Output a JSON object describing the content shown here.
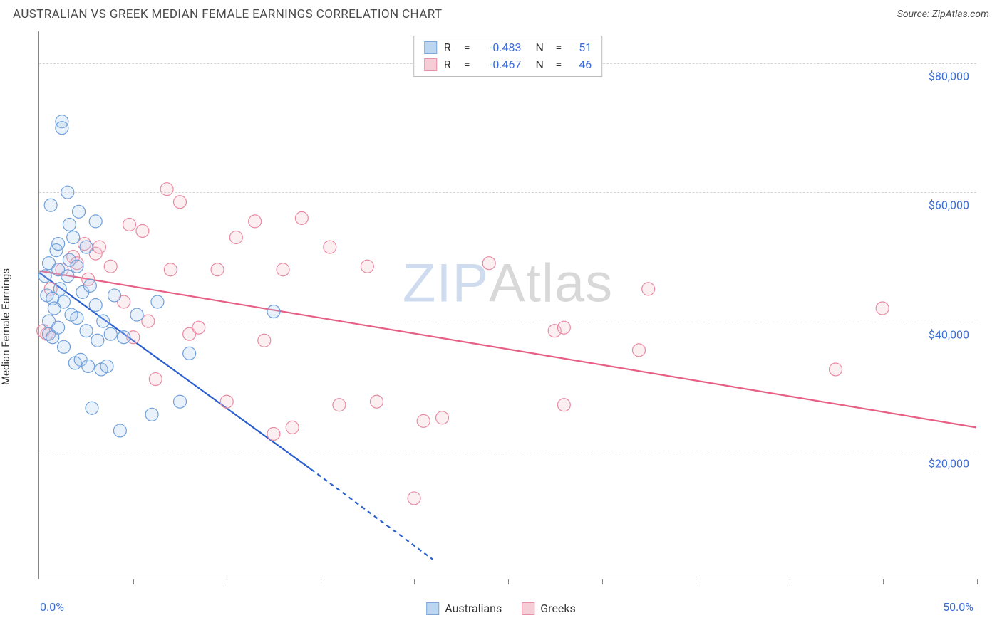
{
  "header": {
    "title": "AUSTRALIAN VS GREEK MEDIAN FEMALE EARNINGS CORRELATION CHART",
    "source_prefix": "Source: ",
    "source_name": "ZipAtlas.com"
  },
  "watermark": {
    "part1": "ZIP",
    "part2": "Atlas"
  },
  "chart": {
    "type": "scatter",
    "ylabel": "Median Female Earnings",
    "xlim": [
      0,
      50
    ],
    "ylim": [
      0,
      85000
    ],
    "x_ticks": [
      0,
      5,
      10,
      15,
      20,
      25,
      30,
      35,
      40,
      45,
      50
    ],
    "y_gridlines": [
      20000,
      40000,
      60000,
      80000
    ],
    "y_tick_labels": [
      "$20,000",
      "$40,000",
      "$60,000",
      "$80,000"
    ],
    "x_left_label": "0.0%",
    "x_right_label": "50.0%",
    "background_color": "#ffffff",
    "grid_color": "#d5d5d5",
    "axis_color": "#888888",
    "label_fontsize": 15,
    "tick_fontsize": 16,
    "tick_color": "#3b6fd8",
    "marker_radius": 9,
    "marker_stroke_width": 1.2,
    "marker_fill_opacity": 0.25,
    "line_width": 2.2
  },
  "correlation_box": {
    "rows": [
      {
        "swatch_fill": "#bcd5f0",
        "swatch_border": "#7aa8dd",
        "r_label": "R",
        "r_value": "-0.483",
        "n_label": "N",
        "n_value": "51"
      },
      {
        "swatch_fill": "#f6cdd7",
        "swatch_border": "#e98fa7",
        "r_label": "R",
        "r_value": "-0.467",
        "n_label": "N",
        "n_value": "46"
      }
    ]
  },
  "legend": {
    "items": [
      {
        "swatch_fill": "#bcd5f0",
        "swatch_border": "#7aa8dd",
        "label": "Australians"
      },
      {
        "swatch_fill": "#f6cdd7",
        "swatch_border": "#e98fa7",
        "label": "Greeks"
      }
    ]
  },
  "series": {
    "australians": {
      "color_stroke": "#6fa0db",
      "color_fill": "#a8c8ea",
      "trendline_color": "#2a5fd0",
      "trendline": {
        "x1": 0,
        "y1": 47500,
        "x2": 14.5,
        "y2": 17000,
        "x2_dash": 21,
        "y2_dash": 3000
      },
      "points": [
        [
          0.3,
          47000
        ],
        [
          0.4,
          44000
        ],
        [
          0.5,
          49000
        ],
        [
          0.5,
          40000
        ],
        [
          0.5,
          38000
        ],
        [
          0.6,
          58000
        ],
        [
          0.7,
          43500
        ],
        [
          0.7,
          37500
        ],
        [
          0.8,
          42000
        ],
        [
          0.9,
          51000
        ],
        [
          1.0,
          48000
        ],
        [
          1.0,
          52000
        ],
        [
          1.0,
          39000
        ],
        [
          1.1,
          45000
        ],
        [
          1.2,
          71000
        ],
        [
          1.2,
          70000
        ],
        [
          1.3,
          43000
        ],
        [
          1.3,
          36000
        ],
        [
          1.5,
          60000
        ],
        [
          1.5,
          47000
        ],
        [
          1.6,
          55000
        ],
        [
          1.6,
          49500
        ],
        [
          1.7,
          41000
        ],
        [
          1.8,
          53000
        ],
        [
          1.9,
          33500
        ],
        [
          2.0,
          48500
        ],
        [
          2.0,
          40500
        ],
        [
          2.1,
          57000
        ],
        [
          2.2,
          34000
        ],
        [
          2.3,
          44500
        ],
        [
          2.5,
          51500
        ],
        [
          2.5,
          38500
        ],
        [
          2.6,
          33000
        ],
        [
          2.7,
          45500
        ],
        [
          2.8,
          26500
        ],
        [
          3.0,
          55500
        ],
        [
          3.0,
          42500
        ],
        [
          3.1,
          37000
        ],
        [
          3.3,
          32500
        ],
        [
          3.4,
          40000
        ],
        [
          3.6,
          33000
        ],
        [
          3.8,
          38000
        ],
        [
          4.0,
          44000
        ],
        [
          4.3,
          23000
        ],
        [
          4.5,
          37500
        ],
        [
          5.2,
          41000
        ],
        [
          6.0,
          25500
        ],
        [
          6.3,
          43000
        ],
        [
          7.5,
          27500
        ],
        [
          8.0,
          35000
        ],
        [
          12.5,
          41500
        ]
      ]
    },
    "greeks": {
      "color_stroke": "#e88aa2",
      "color_fill": "#f3bfcb",
      "trendline_color": "#e85f85",
      "trendline": {
        "x1": 0,
        "y1": 47800,
        "x2": 50,
        "y2": 23500
      },
      "points": [
        [
          0.4,
          38000
        ],
        [
          0.6,
          45000
        ],
        [
          1.2,
          48000
        ],
        [
          1.8,
          50000
        ],
        [
          2.0,
          49000
        ],
        [
          2.4,
          52000
        ],
        [
          2.6,
          46500
        ],
        [
          3.0,
          50500
        ],
        [
          3.2,
          51500
        ],
        [
          3.8,
          48500
        ],
        [
          4.5,
          43000
        ],
        [
          4.8,
          55000
        ],
        [
          5.0,
          37500
        ],
        [
          5.5,
          54000
        ],
        [
          5.8,
          40000
        ],
        [
          6.2,
          31000
        ],
        [
          6.8,
          60500
        ],
        [
          7.0,
          48000
        ],
        [
          7.5,
          58500
        ],
        [
          8.0,
          38000
        ],
        [
          8.5,
          39000
        ],
        [
          9.5,
          48000
        ],
        [
          10.0,
          27500
        ],
        [
          10.5,
          53000
        ],
        [
          11.5,
          55500
        ],
        [
          12.0,
          37000
        ],
        [
          12.5,
          22500
        ],
        [
          13.0,
          48000
        ],
        [
          13.5,
          23500
        ],
        [
          14.0,
          56000
        ],
        [
          15.5,
          51500
        ],
        [
          16.0,
          27000
        ],
        [
          17.5,
          48500
        ],
        [
          18.0,
          27500
        ],
        [
          20.0,
          12500
        ],
        [
          20.5,
          24500
        ],
        [
          21.5,
          25000
        ],
        [
          24.0,
          49000
        ],
        [
          27.5,
          38500
        ],
        [
          28.0,
          39000
        ],
        [
          28.0,
          27000
        ],
        [
          32.0,
          35500
        ],
        [
          32.5,
          45000
        ],
        [
          42.5,
          32500
        ],
        [
          45.0,
          42000
        ],
        [
          0.2,
          38500
        ]
      ]
    }
  }
}
